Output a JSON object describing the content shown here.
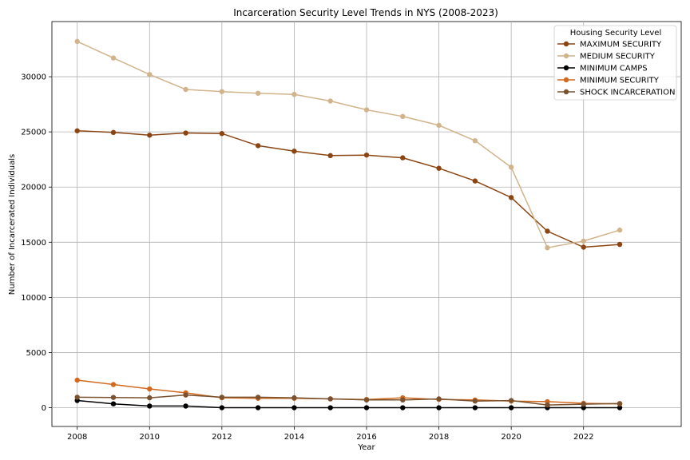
{
  "chart_data": {
    "type": "line",
    "title": "Incarceration Security Level Trends in NYS (2008-2023)",
    "xlabel": "Year",
    "ylabel": "Number of Incarcerated Individuals",
    "xlim": [
      2007.3,
      2024.7
    ],
    "ylim": [
      -1700,
      35000
    ],
    "xticks": [
      2008,
      2010,
      2012,
      2014,
      2016,
      2018,
      2020,
      2022
    ],
    "yticks": [
      0,
      5000,
      10000,
      15000,
      20000,
      25000,
      30000
    ],
    "grid": true,
    "legend_title": "Housing Security Level",
    "legend_position": "top-right",
    "x": [
      2008,
      2009,
      2010,
      2011,
      2012,
      2013,
      2014,
      2015,
      2016,
      2017,
      2018,
      2019,
      2020,
      2021,
      2022,
      2023
    ],
    "series": [
      {
        "name": "MAXIMUM SECURITY",
        "color": "#8B4513",
        "values": [
          25100,
          24950,
          24700,
          24900,
          24850,
          23750,
          23250,
          22850,
          22900,
          22650,
          21700,
          20550,
          19050,
          16000,
          14550,
          14800
        ]
      },
      {
        "name": "MEDIUM SECURITY",
        "color": "#D2B48C",
        "values": [
          33200,
          31700,
          30200,
          28850,
          28650,
          28500,
          28400,
          27800,
          27000,
          26400,
          25600,
          24200,
          21800,
          14500,
          15100,
          16100
        ]
      },
      {
        "name": "MINIMUM CAMPS",
        "color": "#000000",
        "values": [
          650,
          350,
          150,
          150,
          0,
          0,
          0,
          0,
          0,
          0,
          0,
          0,
          0,
          0,
          0,
          0
        ]
      },
      {
        "name": "MINIMUM SECURITY",
        "color": "#D2691E",
        "values": [
          2500,
          2100,
          1700,
          1350,
          900,
          850,
          850,
          800,
          750,
          900,
          750,
          700,
          600,
          550,
          400,
          350
        ]
      },
      {
        "name": "SHOCK INCARCERATION",
        "color": "#7A5230",
        "values": [
          950,
          930,
          900,
          1150,
          950,
          950,
          900,
          800,
          700,
          700,
          800,
          600,
          650,
          250,
          320,
          380
        ]
      }
    ]
  }
}
